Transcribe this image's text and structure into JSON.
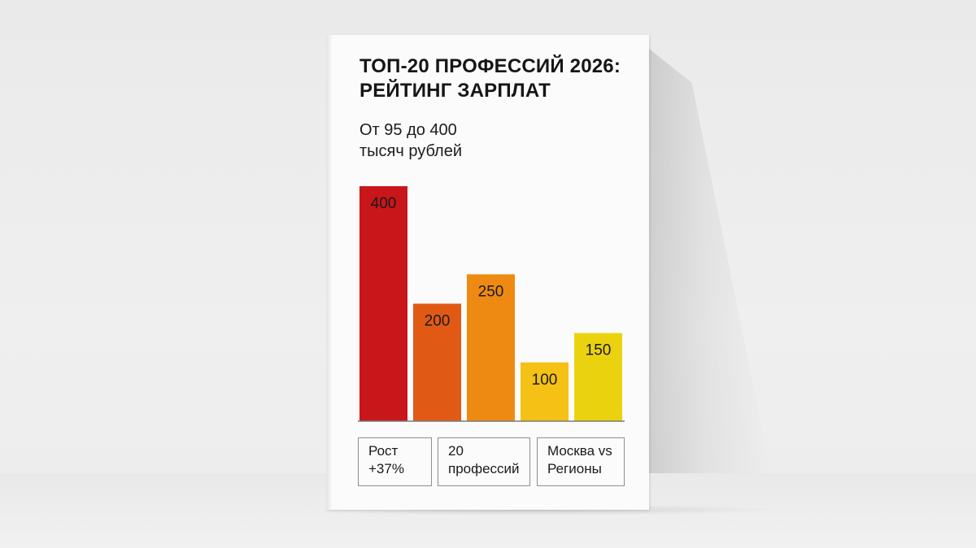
{
  "book": {
    "title_lines": [
      "ТОП-20 ПРОФЕССИЙ 2026:",
      "РЕЙТИНГ ЗАРПЛАТ"
    ],
    "subtitle_lines": [
      "От 95 до 400",
      "тысяч рублей"
    ],
    "stats": [
      {
        "lines": [
          "Рост",
          "+37%"
        ]
      },
      {
        "lines": [
          "20",
          "профессий"
        ]
      },
      {
        "lines": [
          "Москва vs",
          "Регионы"
        ]
      }
    ]
  },
  "chart_data": {
    "type": "bar",
    "title": "",
    "xlabel": "",
    "ylabel": "",
    "values": [
      400,
      200,
      250,
      100,
      150
    ],
    "labels": [
      "400",
      "200",
      "250",
      "100",
      "150"
    ],
    "colors": [
      "#c8161a",
      "#e15a15",
      "#ee8a12",
      "#f4c114",
      "#ead20f"
    ],
    "ylim": [
      0,
      400
    ],
    "grid": false,
    "legend": "none"
  }
}
